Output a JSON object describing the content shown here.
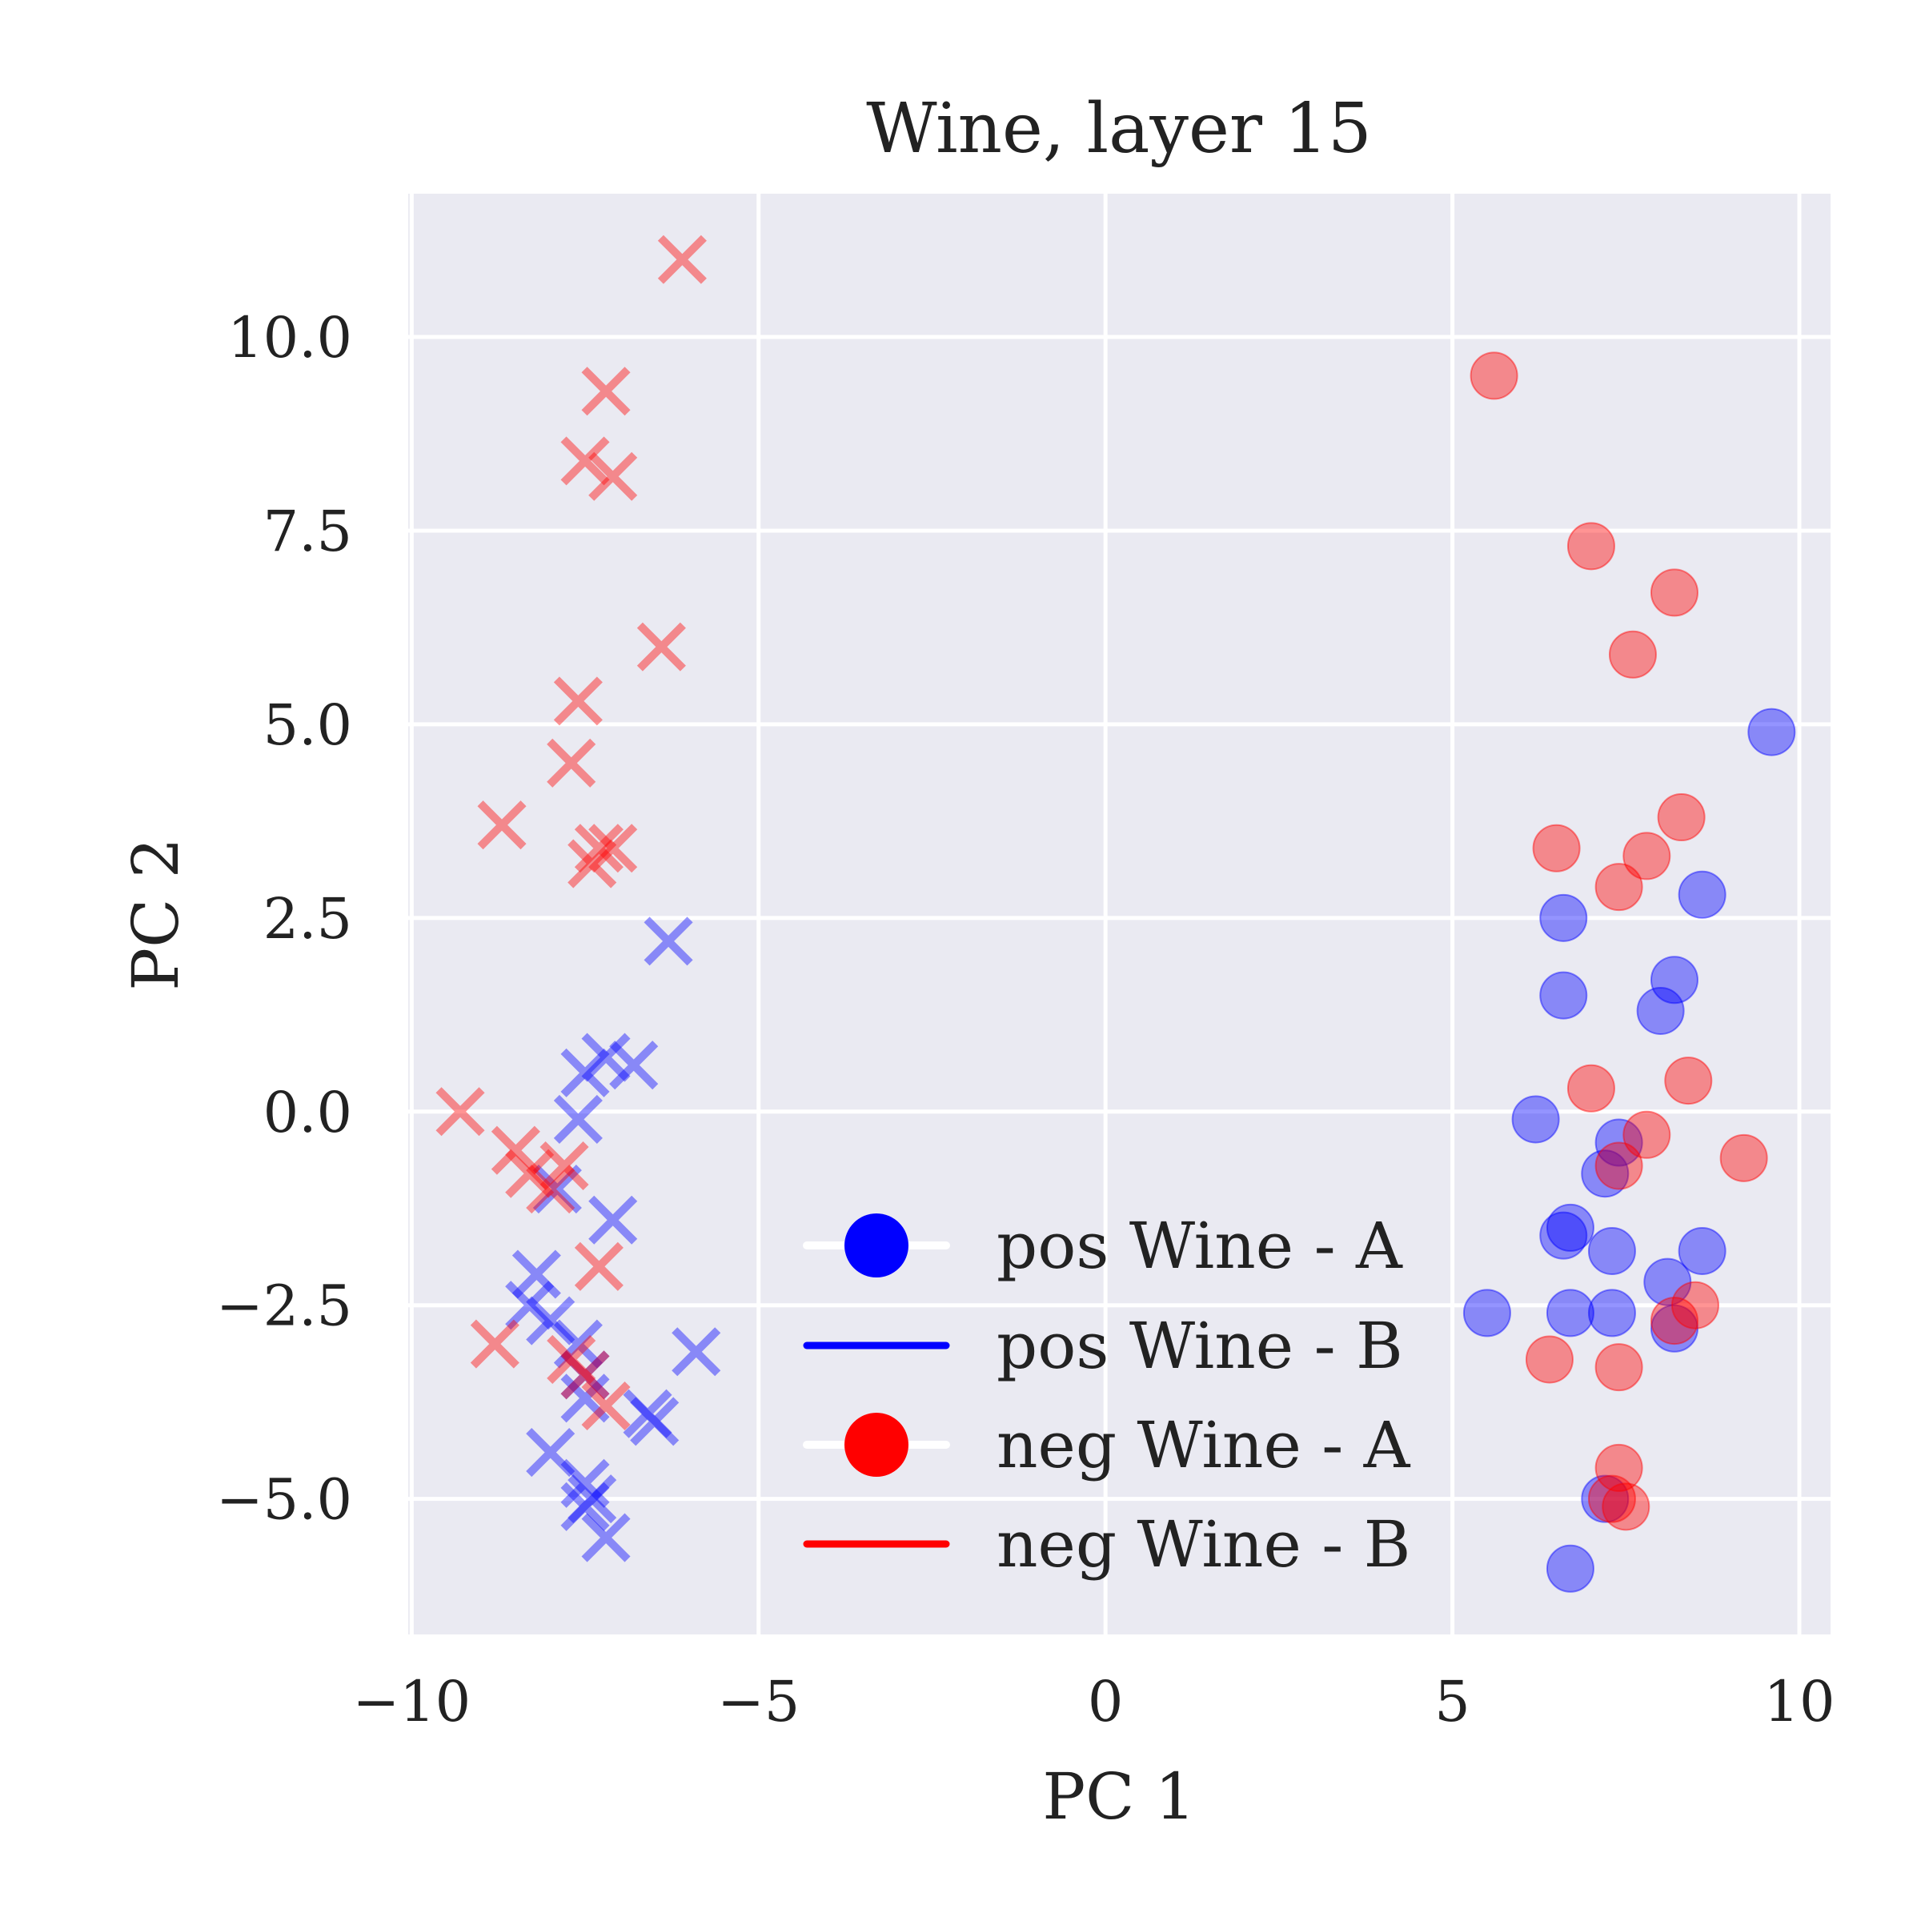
{
  "chart_data": {
    "type": "scatter",
    "title": "Wine, layer 15",
    "xlabel": "PC 1",
    "ylabel": "PC 2",
    "xlim": [
      -10.05,
      10.45
    ],
    "ylim": [
      -6.75,
      11.85
    ],
    "xticks": [
      -10,
      -5,
      0,
      5,
      10
    ],
    "xtick_labels": [
      "−10",
      "−5",
      "0",
      "5",
      "10"
    ],
    "yticks": [
      -5.0,
      -2.5,
      0.0,
      2.5,
      5.0,
      7.5,
      10.0
    ],
    "ytick_labels": [
      "−5.0",
      "−2.5",
      "0.0",
      "2.5",
      "5.0",
      "7.5",
      "10.0"
    ],
    "grid": true,
    "legend_position": "lower-right",
    "legend": [
      {
        "label": "pos Wine - A",
        "color": "#0000ff",
        "marker": "circle"
      },
      {
        "label": "pos Wine - B",
        "color": "#0000ff",
        "marker": "line"
      },
      {
        "label": "neg Wine - A",
        "color": "#ff0000",
        "marker": "circle"
      },
      {
        "label": "neg Wine - B",
        "color": "#ff0000",
        "marker": "line"
      }
    ],
    "series": [
      {
        "name": "pos Wine - A",
        "color": "#0000ff",
        "marker": "circle",
        "points": [
          [
            9.6,
            4.9
          ],
          [
            6.6,
            2.5
          ],
          [
            8.6,
            2.8
          ],
          [
            8.2,
            1.7
          ],
          [
            6.6,
            1.5
          ],
          [
            8.0,
            1.3
          ],
          [
            6.2,
            -0.1
          ],
          [
            7.4,
            -0.4
          ],
          [
            7.2,
            -0.8
          ],
          [
            6.7,
            -1.5
          ],
          [
            6.6,
            -1.6
          ],
          [
            7.3,
            -1.8
          ],
          [
            8.6,
            -1.8
          ],
          [
            8.1,
            -2.2
          ],
          [
            5.5,
            -2.6
          ],
          [
            6.7,
            -2.6
          ],
          [
            7.3,
            -2.6
          ],
          [
            8.2,
            -2.8
          ],
          [
            7.2,
            -5.0
          ],
          [
            6.7,
            -5.9
          ]
        ]
      },
      {
        "name": "pos Wine - B",
        "color": "#0000ff",
        "marker": "x",
        "points": [
          [
            -6.3,
            2.2
          ],
          [
            -7.5,
            0.5
          ],
          [
            -7.2,
            0.7
          ],
          [
            -6.8,
            0.6
          ],
          [
            -7.6,
            -0.1
          ],
          [
            -7.9,
            -1.0
          ],
          [
            -7.1,
            -1.4
          ],
          [
            -8.2,
            -2.1
          ],
          [
            -8.3,
            -2.5
          ],
          [
            -8.0,
            -2.7
          ],
          [
            -7.6,
            -3.0
          ],
          [
            -7.5,
            -3.4
          ],
          [
            -7.5,
            -3.7
          ],
          [
            -6.6,
            -3.9
          ],
          [
            -6.5,
            -4.0
          ],
          [
            -5.9,
            -3.1
          ],
          [
            -8.0,
            -4.4
          ],
          [
            -7.5,
            -4.8
          ],
          [
            -7.4,
            -5.0
          ],
          [
            -7.5,
            -5.1
          ],
          [
            -7.2,
            -5.5
          ]
        ]
      },
      {
        "name": "neg Wine - A",
        "color": "#ff0000",
        "marker": "circle",
        "points": [
          [
            5.6,
            9.5
          ],
          [
            7.0,
            7.3
          ],
          [
            8.2,
            6.7
          ],
          [
            7.6,
            5.9
          ],
          [
            8.3,
            3.8
          ],
          [
            6.5,
            3.4
          ],
          [
            7.8,
            3.3
          ],
          [
            7.4,
            2.9
          ],
          [
            7.0,
            0.3
          ],
          [
            8.4,
            0.4
          ],
          [
            7.8,
            -0.3
          ],
          [
            9.2,
            -0.6
          ],
          [
            7.4,
            -0.7
          ],
          [
            8.5,
            -2.5
          ],
          [
            8.2,
            -2.7
          ],
          [
            6.4,
            -3.2
          ],
          [
            7.4,
            -3.3
          ],
          [
            7.4,
            -4.6
          ],
          [
            7.3,
            -5.0
          ],
          [
            7.5,
            -5.1
          ]
        ]
      },
      {
        "name": "neg Wine - B",
        "color": "#ff0000",
        "marker": "x",
        "points": [
          [
            -6.1,
            11.0
          ],
          [
            -7.2,
            9.3
          ],
          [
            -7.5,
            8.4
          ],
          [
            -7.1,
            8.2
          ],
          [
            -6.4,
            6.0
          ],
          [
            -7.6,
            5.3
          ],
          [
            -7.7,
            4.5
          ],
          [
            -8.7,
            3.7
          ],
          [
            -7.3,
            3.4
          ],
          [
            -7.1,
            3.4
          ],
          [
            -7.4,
            3.2
          ],
          [
            -9.3,
            0.0
          ],
          [
            -8.5,
            -0.5
          ],
          [
            -8.3,
            -0.8
          ],
          [
            -7.8,
            -0.7
          ],
          [
            -8.0,
            -1.0
          ],
          [
            -7.3,
            -2.0
          ],
          [
            -8.8,
            -3.0
          ],
          [
            -7.7,
            -3.2
          ],
          [
            -7.5,
            -3.4
          ],
          [
            -7.2,
            -3.8
          ]
        ]
      }
    ]
  }
}
